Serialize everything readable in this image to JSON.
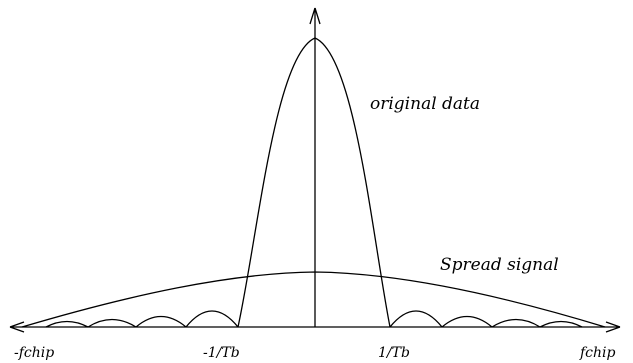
{
  "diagram": {
    "labels": {
      "original_data": "original data",
      "spread_signal": "Spread signal",
      "neg_fchip": "-fchip",
      "neg_inv_tb": "-1/Tb",
      "pos_inv_tb": "1/Tb",
      "pos_fchip": "fchip"
    },
    "colors": {
      "line": "#000000",
      "background": "#ffffff"
    }
  }
}
